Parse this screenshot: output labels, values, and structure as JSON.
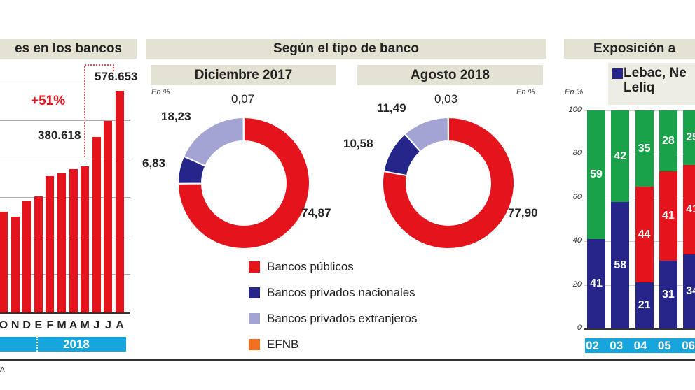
{
  "colors": {
    "publicos": "#e3141b",
    "privados_nacionales": "#25258a",
    "privados_extranjeros": "#a4a4d4",
    "efnb": "#f07020",
    "green": "#1aa24b",
    "accent_cyan": "#17a5de",
    "title_band": "#e4e2d2"
  },
  "chart_data": [
    {
      "type": "bar",
      "title": "es en los bancos",
      "categories": [
        "O",
        "N",
        "D",
        "E",
        "F",
        "M",
        "A",
        "M",
        "J",
        "J",
        "A"
      ],
      "values": [
        262000,
        249000,
        289000,
        302000,
        355000,
        362000,
        373000,
        380618,
        457000,
        499000,
        576653
      ],
      "ylim": [
        0,
        600000
      ],
      "grid": true,
      "year_label": "2018",
      "annotations": {
        "change": "+51%",
        "start_value_label": "380.618",
        "end_value_label": "576.653"
      }
    },
    {
      "type": "pie",
      "title": "Según el tipo de banco",
      "unit": "En %",
      "legend": [
        "Bancos públicos",
        "Bancos privados nacionales",
        "Bancos privados extranjeros",
        "EFNB"
      ],
      "donuts": [
        {
          "title": "Diciembre 2017",
          "values": [
            74.87,
            6.83,
            18.23,
            0.07
          ],
          "labels": [
            "74,87",
            "6,83",
            "18,23",
            "0,07"
          ]
        },
        {
          "title": "Agosto 2018",
          "values": [
            77.9,
            10.58,
            11.49,
            0.03
          ],
          "labels": [
            "77,90",
            "10,58",
            "11,49",
            "0,03"
          ]
        }
      ]
    },
    {
      "type": "bar",
      "stacked": true,
      "title": "Exposición a",
      "unit": "En %",
      "legend": [
        "Lebac, Ne",
        "Leliq"
      ],
      "categories": [
        "02",
        "03",
        "04",
        "05",
        "06"
      ],
      "ylim": [
        0,
        100
      ],
      "yticks": [
        "0",
        "20",
        "40",
        "60",
        "80",
        "100"
      ],
      "series": [
        {
          "color": "blue",
          "values": [
            41,
            58,
            21,
            31,
            34
          ]
        },
        {
          "color": "red",
          "values": [
            0,
            0,
            44,
            41,
            41
          ]
        },
        {
          "color": "green",
          "values": [
            59,
            42,
            35,
            28,
            25
          ]
        }
      ]
    }
  ],
  "source_fragment": "A"
}
